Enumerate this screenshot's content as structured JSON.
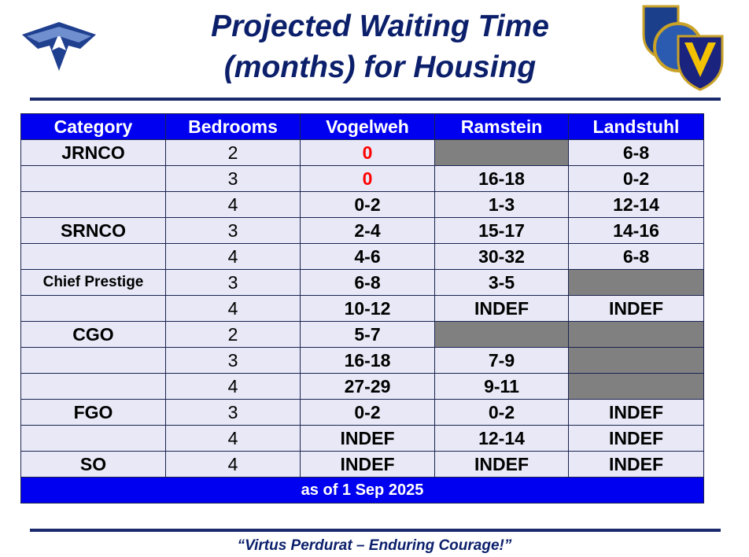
{
  "title": [
    "Projected Waiting Time",
    "(months) for Housing"
  ],
  "table": {
    "header": [
      "Category",
      "Bedrooms",
      "Vogelweh",
      "Ramstein",
      "Landstuhl"
    ],
    "rows": [
      [
        "JRNCO",
        2,
        {
          "value": 0,
          "color": "#ff0000"
        },
        null,
        "6-8"
      ],
      [
        null,
        3,
        {
          "value": 0,
          "color": "#ff0000"
        },
        "16-18",
        "0-2"
      ],
      [
        null,
        4,
        "0-2",
        "1-3",
        "12-14"
      ],
      [
        "SRNCO",
        3,
        "2-4",
        "15-17",
        "14-16"
      ],
      [
        null,
        4,
        "4-6",
        "30-32",
        "6-8"
      ],
      [
        "Chief Prestige",
        3,
        "6-8",
        "3-5",
        null
      ],
      [
        null,
        4,
        "10-12",
        "INDEF",
        "INDEF"
      ],
      [
        "CGO",
        2,
        "5-7",
        null,
        null
      ],
      [
        null,
        3,
        "16-18",
        "7-9",
        null
      ],
      [
        null,
        4,
        "27-29",
        "9-11",
        null
      ],
      [
        "FGO",
        3,
        "0-2",
        "0-2",
        "INDEF"
      ],
      [
        null,
        4,
        "INDEF",
        "12-14",
        "INDEF"
      ],
      [
        "SO",
        4,
        "INDEF",
        "INDEF",
        "INDEF"
      ]
    ],
    "note": "as of  1 Sep 2025"
  },
  "footer": {
    "quote": "“Virtus Perdurat – Enduring Courage!”"
  }
}
